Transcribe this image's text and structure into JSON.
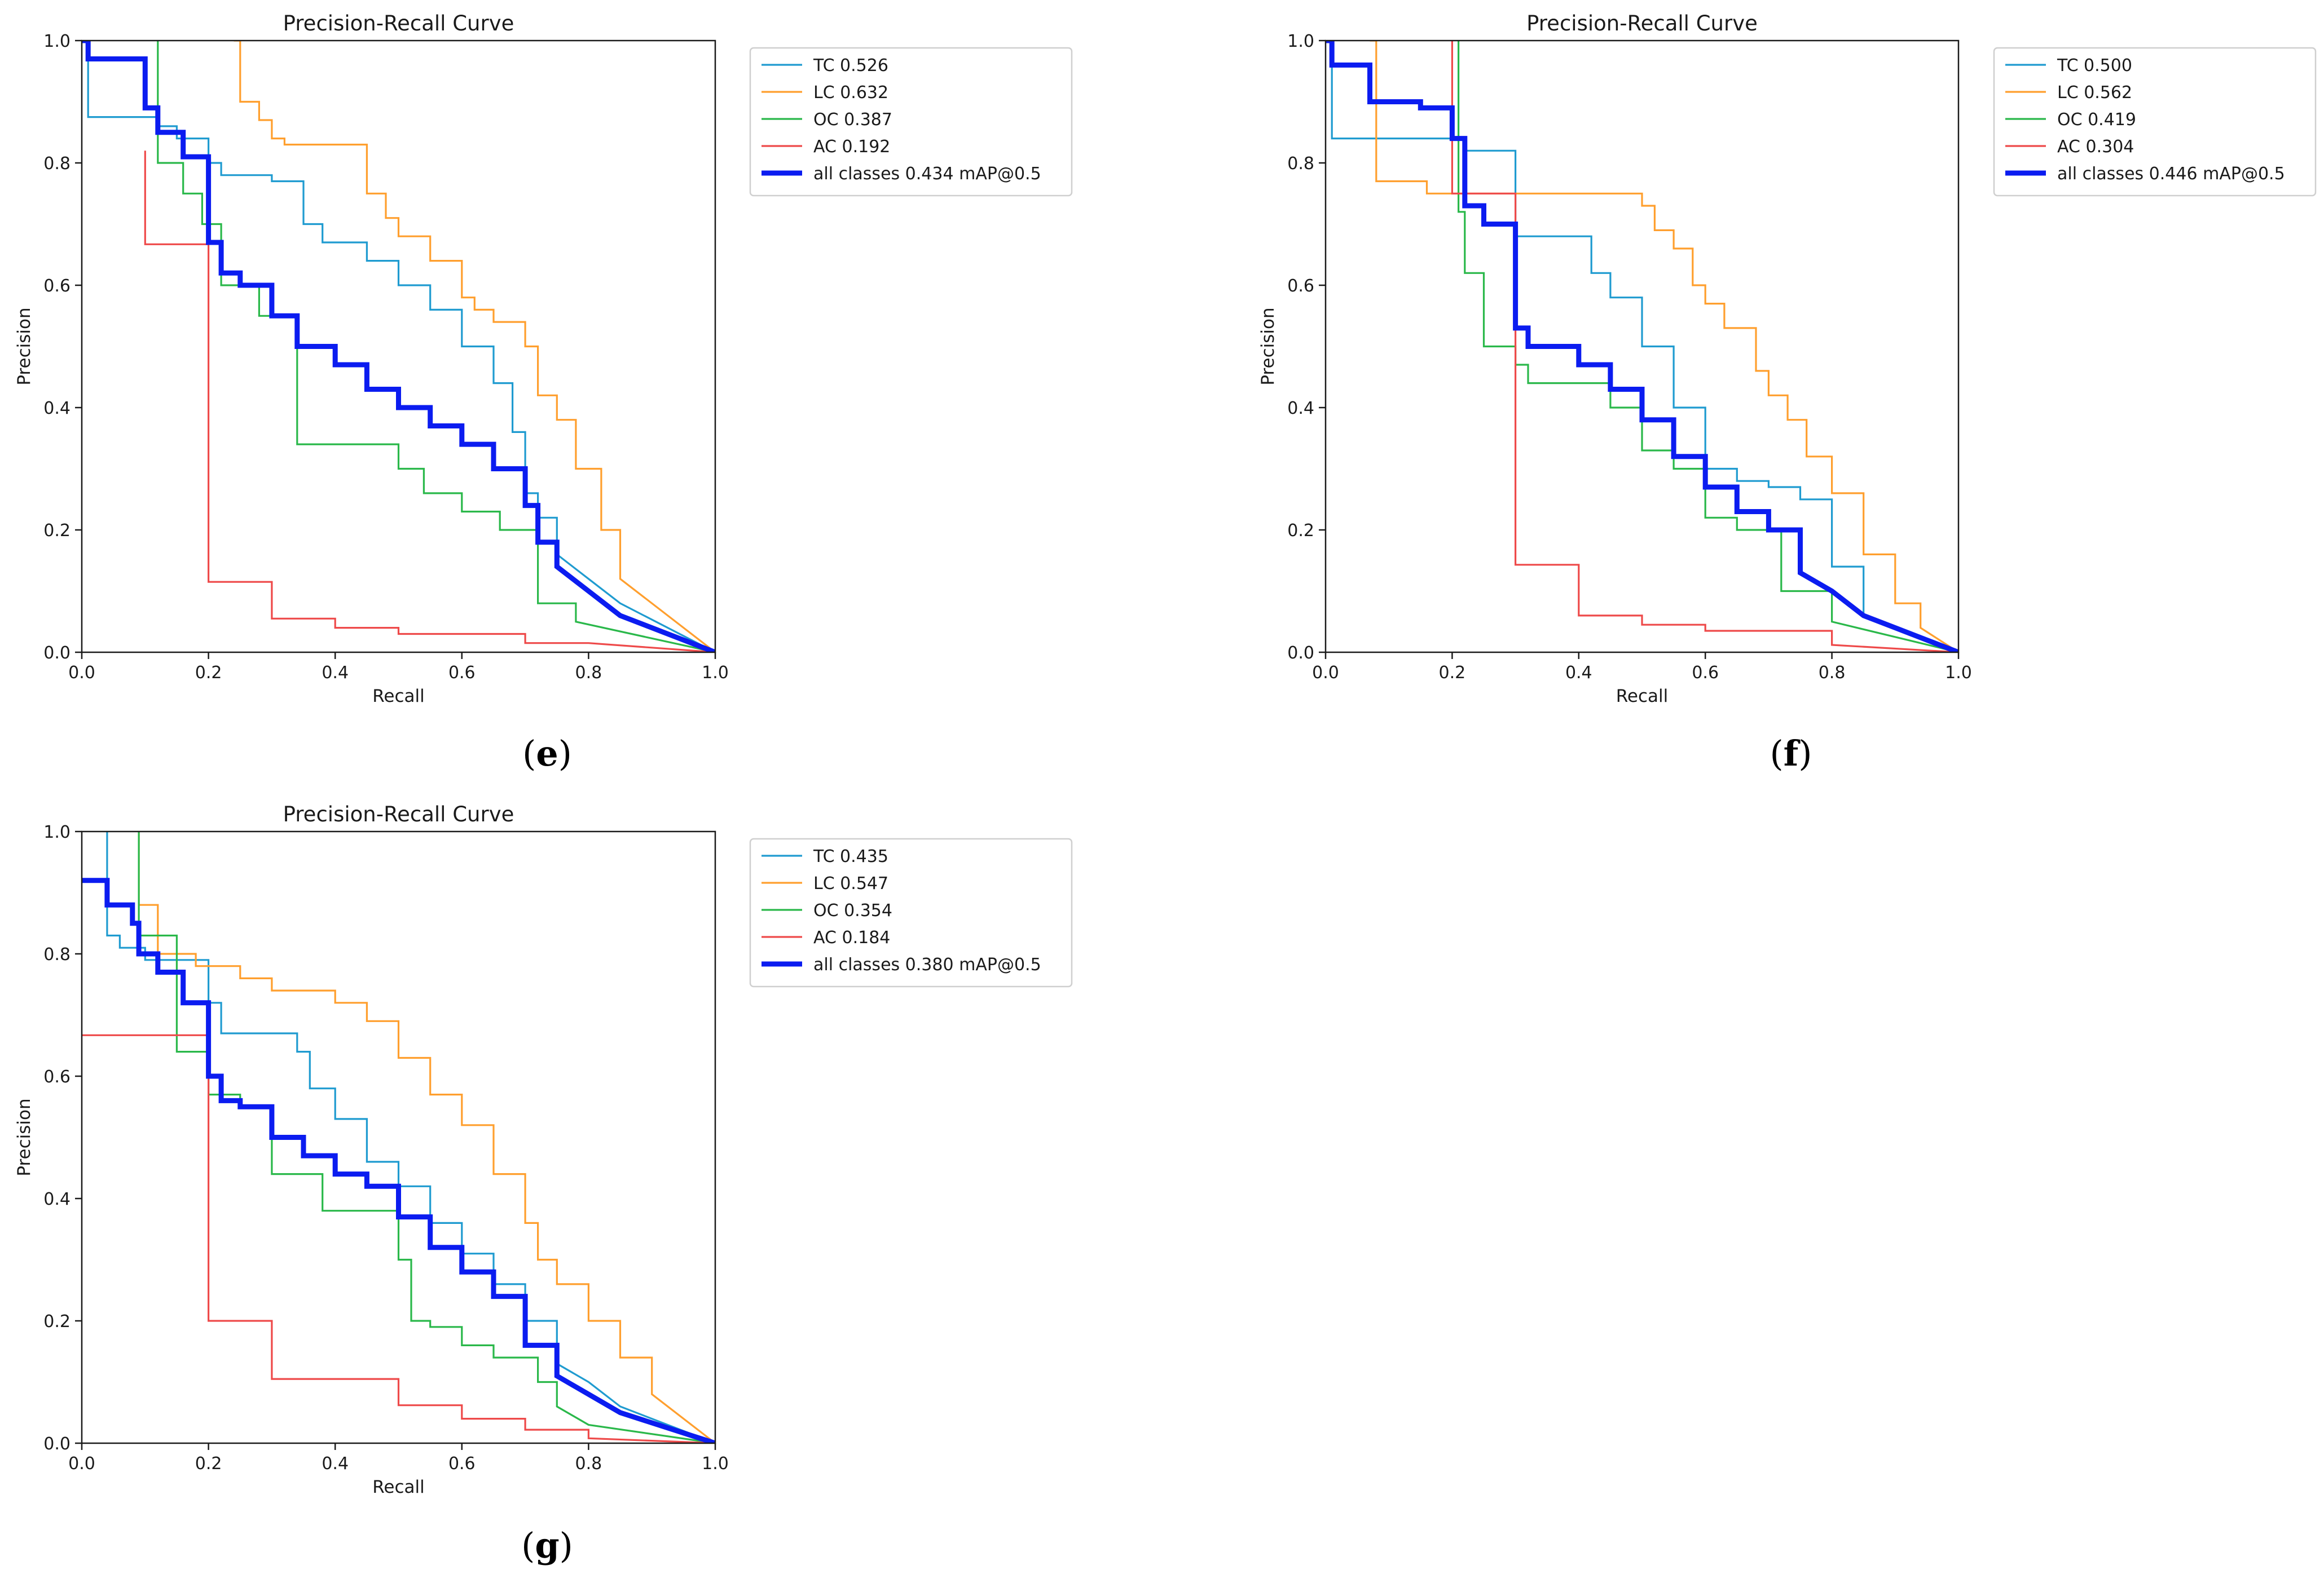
{
  "colors": {
    "TC": "#1f9bd0",
    "LC": "#ff9f2e",
    "OC": "#2ab84a",
    "AC": "#ee4a4a",
    "all": "#0b1cf0"
  },
  "captions": [
    {
      "open": "(",
      "letter": "e",
      "close": ")"
    },
    {
      "open": "(",
      "letter": "f",
      "close": ")"
    },
    {
      "open": "(",
      "letter": "g",
      "close": ")"
    }
  ],
  "chart_data": [
    {
      "type": "line",
      "title": "Precision-Recall Curve",
      "xlabel": "Recall",
      "ylabel": "Precision",
      "xlim": [
        0,
        1
      ],
      "ylim": [
        0,
        1
      ],
      "xticks": [
        "0.0",
        "0.2",
        "0.4",
        "0.6",
        "0.8",
        "1.0"
      ],
      "yticks": [
        "0.0",
        "0.2",
        "0.4",
        "0.6",
        "0.8",
        "1.0"
      ],
      "legend_position": "outside-right",
      "series": [
        {
          "key": "TC",
          "name": "TC 0.526",
          "x": [
            0,
            0.01,
            0.01,
            0.12,
            0.12,
            0.15,
            0.15,
            0.2,
            0.2,
            0.22,
            0.22,
            0.3,
            0.3,
            0.35,
            0.35,
            0.38,
            0.38,
            0.45,
            0.45,
            0.5,
            0.5,
            0.55,
            0.55,
            0.6,
            0.6,
            0.65,
            0.65,
            0.68,
            0.68,
            0.7,
            0.7,
            0.72,
            0.72,
            0.75,
            0.75,
            0.8,
            0.85,
            1
          ],
          "y": [
            1.0,
            1.0,
            0.875,
            0.875,
            0.86,
            0.86,
            0.84,
            0.84,
            0.8,
            0.8,
            0.78,
            0.78,
            0.77,
            0.77,
            0.7,
            0.7,
            0.67,
            0.67,
            0.64,
            0.64,
            0.6,
            0.6,
            0.56,
            0.56,
            0.5,
            0.5,
            0.44,
            0.44,
            0.36,
            0.36,
            0.26,
            0.26,
            0.22,
            0.22,
            0.16,
            0.12,
            0.08,
            0
          ]
        },
        {
          "key": "LC",
          "name": "LC 0.632",
          "x": [
            0.24,
            0.25,
            0.25,
            0.28,
            0.28,
            0.3,
            0.3,
            0.32,
            0.32,
            0.45,
            0.45,
            0.48,
            0.48,
            0.5,
            0.5,
            0.55,
            0.55,
            0.6,
            0.6,
            0.62,
            0.62,
            0.65,
            0.65,
            0.7,
            0.7,
            0.72,
            0.72,
            0.75,
            0.75,
            0.78,
            0.78,
            0.82,
            0.82,
            0.85,
            0.85,
            1
          ],
          "y": [
            1.0,
            1.0,
            0.9,
            0.9,
            0.87,
            0.87,
            0.84,
            0.84,
            0.83,
            0.83,
            0.75,
            0.75,
            0.71,
            0.71,
            0.68,
            0.68,
            0.64,
            0.64,
            0.58,
            0.58,
            0.56,
            0.56,
            0.54,
            0.54,
            0.5,
            0.5,
            0.42,
            0.42,
            0.38,
            0.38,
            0.3,
            0.3,
            0.2,
            0.2,
            0.12,
            0
          ]
        },
        {
          "key": "OC",
          "name": "OC 0.387",
          "x": [
            0.12,
            0.12,
            0.16,
            0.16,
            0.19,
            0.19,
            0.22,
            0.22,
            0.28,
            0.28,
            0.34,
            0.34,
            0.5,
            0.5,
            0.54,
            0.54,
            0.6,
            0.6,
            0.66,
            0.66,
            0.72,
            0.72,
            0.78,
            0.78,
            1
          ],
          "y": [
            1.0,
            0.8,
            0.8,
            0.75,
            0.75,
            0.7,
            0.7,
            0.6,
            0.6,
            0.55,
            0.55,
            0.34,
            0.34,
            0.3,
            0.3,
            0.26,
            0.26,
            0.23,
            0.23,
            0.2,
            0.2,
            0.08,
            0.08,
            0.05,
            0
          ]
        },
        {
          "key": "AC",
          "name": "AC 0.192",
          "x": [
            0.1,
            0.1,
            0.2,
            0.2,
            0.3,
            0.3,
            0.4,
            0.4,
            0.5,
            0.5,
            0.7,
            0.7,
            0.8,
            1
          ],
          "y": [
            0.82,
            0.667,
            0.667,
            0.115,
            0.115,
            0.055,
            0.055,
            0.04,
            0.04,
            0.03,
            0.03,
            0.015,
            0.015,
            0
          ]
        },
        {
          "key": "all",
          "name": "all classes 0.434 mAP@0.5",
          "thick": true,
          "x": [
            0,
            0.01,
            0.01,
            0.1,
            0.1,
            0.12,
            0.12,
            0.16,
            0.16,
            0.2,
            0.2,
            0.22,
            0.22,
            0.25,
            0.25,
            0.3,
            0.3,
            0.34,
            0.34,
            0.4,
            0.4,
            0.45,
            0.45,
            0.5,
            0.5,
            0.55,
            0.55,
            0.6,
            0.6,
            0.65,
            0.65,
            0.7,
            0.7,
            0.72,
            0.72,
            0.75,
            0.75,
            0.8,
            0.85,
            1
          ],
          "y": [
            1.0,
            1.0,
            0.97,
            0.97,
            0.89,
            0.89,
            0.85,
            0.85,
            0.81,
            0.81,
            0.67,
            0.67,
            0.62,
            0.62,
            0.6,
            0.6,
            0.55,
            0.55,
            0.5,
            0.5,
            0.47,
            0.47,
            0.43,
            0.43,
            0.4,
            0.4,
            0.37,
            0.37,
            0.34,
            0.34,
            0.3,
            0.3,
            0.24,
            0.24,
            0.18,
            0.18,
            0.14,
            0.1,
            0.06,
            0
          ]
        }
      ]
    },
    {
      "type": "line",
      "title": "Precision-Recall Curve",
      "xlabel": "Recall",
      "ylabel": "Precision",
      "xlim": [
        0,
        1
      ],
      "ylim": [
        0,
        1
      ],
      "xticks": [
        "0.0",
        "0.2",
        "0.4",
        "0.6",
        "0.8",
        "1.0"
      ],
      "yticks": [
        "0.0",
        "0.2",
        "0.4",
        "0.6",
        "0.8",
        "1.0"
      ],
      "legend_position": "outside-right",
      "series": [
        {
          "key": "TC",
          "name": "TC 0.500",
          "x": [
            0,
            0.01,
            0.01,
            0.22,
            0.22,
            0.3,
            0.3,
            0.42,
            0.42,
            0.45,
            0.45,
            0.5,
            0.5,
            0.55,
            0.55,
            0.6,
            0.6,
            0.65,
            0.65,
            0.7,
            0.7,
            0.75,
            0.75,
            0.8,
            0.8,
            0.85,
            0.85,
            1
          ],
          "y": [
            1.0,
            1.0,
            0.84,
            0.84,
            0.82,
            0.82,
            0.68,
            0.68,
            0.62,
            0.62,
            0.58,
            0.58,
            0.5,
            0.5,
            0.4,
            0.4,
            0.3,
            0.3,
            0.28,
            0.28,
            0.27,
            0.27,
            0.25,
            0.25,
            0.14,
            0.14,
            0.06,
            0
          ]
        },
        {
          "key": "LC",
          "name": "LC 0.562",
          "x": [
            0.07,
            0.08,
            0.08,
            0.16,
            0.16,
            0.5,
            0.5,
            0.52,
            0.52,
            0.55,
            0.55,
            0.58,
            0.58,
            0.6,
            0.6,
            0.63,
            0.63,
            0.68,
            0.68,
            0.7,
            0.7,
            0.73,
            0.73,
            0.76,
            0.76,
            0.8,
            0.8,
            0.85,
            0.85,
            0.9,
            0.9,
            0.94,
            0.94,
            1
          ],
          "y": [
            1.0,
            1.0,
            0.77,
            0.77,
            0.75,
            0.75,
            0.73,
            0.73,
            0.69,
            0.69,
            0.66,
            0.66,
            0.6,
            0.6,
            0.57,
            0.57,
            0.53,
            0.53,
            0.46,
            0.46,
            0.42,
            0.42,
            0.38,
            0.38,
            0.32,
            0.32,
            0.26,
            0.26,
            0.16,
            0.16,
            0.08,
            0.08,
            0.04,
            0
          ]
        },
        {
          "key": "OC",
          "name": "OC 0.419",
          "x": [
            0.21,
            0.21,
            0.22,
            0.22,
            0.25,
            0.25,
            0.3,
            0.3,
            0.32,
            0.32,
            0.45,
            0.45,
            0.5,
            0.5,
            0.55,
            0.55,
            0.6,
            0.6,
            0.65,
            0.65,
            0.72,
            0.72,
            0.8,
            0.8,
            1
          ],
          "y": [
            1.0,
            0.72,
            0.72,
            0.62,
            0.62,
            0.5,
            0.5,
            0.47,
            0.47,
            0.44,
            0.44,
            0.4,
            0.4,
            0.33,
            0.33,
            0.3,
            0.3,
            0.22,
            0.22,
            0.2,
            0.2,
            0.1,
            0.1,
            0.05,
            0
          ]
        },
        {
          "key": "AC",
          "name": "AC 0.304",
          "x": [
            0.2,
            0.2,
            0.3,
            0.3,
            0.4,
            0.4,
            0.5,
            0.5,
            0.6,
            0.6,
            0.8,
            0.8,
            1
          ],
          "y": [
            1.0,
            0.75,
            0.75,
            0.143,
            0.143,
            0.06,
            0.06,
            0.045,
            0.045,
            0.035,
            0.035,
            0.012,
            0
          ]
        },
        {
          "key": "all",
          "name": "all classes 0.446 mAP@0.5",
          "thick": true,
          "x": [
            0,
            0.01,
            0.01,
            0.07,
            0.07,
            0.15,
            0.15,
            0.2,
            0.2,
            0.22,
            0.22,
            0.25,
            0.25,
            0.3,
            0.3,
            0.32,
            0.32,
            0.4,
            0.4,
            0.45,
            0.45,
            0.5,
            0.5,
            0.55,
            0.55,
            0.6,
            0.6,
            0.65,
            0.65,
            0.7,
            0.7,
            0.75,
            0.75,
            0.8,
            0.85,
            0.9,
            0.95,
            1
          ],
          "y": [
            1.0,
            1.0,
            0.96,
            0.96,
            0.9,
            0.9,
            0.89,
            0.89,
            0.84,
            0.84,
            0.73,
            0.73,
            0.7,
            0.7,
            0.53,
            0.53,
            0.5,
            0.5,
            0.47,
            0.47,
            0.43,
            0.43,
            0.38,
            0.38,
            0.32,
            0.32,
            0.27,
            0.27,
            0.23,
            0.23,
            0.2,
            0.2,
            0.13,
            0.1,
            0.06,
            0.04,
            0.02,
            0
          ]
        }
      ]
    },
    {
      "type": "line",
      "title": "Precision-Recall Curve",
      "xlabel": "Recall",
      "ylabel": "Precision",
      "xlim": [
        0,
        1
      ],
      "ylim": [
        0,
        1
      ],
      "xticks": [
        "0.0",
        "0.2",
        "0.4",
        "0.6",
        "0.8",
        "1.0"
      ],
      "yticks": [
        "0.0",
        "0.2",
        "0.4",
        "0.6",
        "0.8",
        "1.0"
      ],
      "legend_position": "outside-right",
      "series": [
        {
          "key": "TC",
          "name": "TC 0.435",
          "x": [
            0.04,
            0.04,
            0.06,
            0.06,
            0.1,
            0.1,
            0.2,
            0.2,
            0.22,
            0.22,
            0.34,
            0.34,
            0.36,
            0.36,
            0.4,
            0.4,
            0.45,
            0.45,
            0.5,
            0.5,
            0.55,
            0.55,
            0.6,
            0.6,
            0.65,
            0.65,
            0.7,
            0.7,
            0.75,
            0.75,
            0.8,
            0.85,
            1
          ],
          "y": [
            1.0,
            0.83,
            0.83,
            0.81,
            0.81,
            0.79,
            0.79,
            0.72,
            0.72,
            0.67,
            0.67,
            0.64,
            0.64,
            0.58,
            0.58,
            0.53,
            0.53,
            0.46,
            0.46,
            0.42,
            0.42,
            0.36,
            0.36,
            0.31,
            0.31,
            0.26,
            0.26,
            0.2,
            0.2,
            0.13,
            0.1,
            0.06,
            0
          ]
        },
        {
          "key": "LC",
          "name": "LC 0.547",
          "x": [
            0.09,
            0.09,
            0.12,
            0.12,
            0.18,
            0.18,
            0.25,
            0.25,
            0.3,
            0.3,
            0.4,
            0.4,
            0.45,
            0.45,
            0.5,
            0.5,
            0.55,
            0.55,
            0.6,
            0.6,
            0.65,
            0.65,
            0.7,
            0.7,
            0.72,
            0.72,
            0.75,
            0.75,
            0.8,
            0.8,
            0.85,
            0.85,
            0.9,
            0.9,
            1
          ],
          "y": [
            1.0,
            0.88,
            0.88,
            0.8,
            0.8,
            0.78,
            0.78,
            0.76,
            0.76,
            0.74,
            0.74,
            0.72,
            0.72,
            0.69,
            0.69,
            0.63,
            0.63,
            0.57,
            0.57,
            0.52,
            0.52,
            0.44,
            0.44,
            0.36,
            0.36,
            0.3,
            0.3,
            0.26,
            0.26,
            0.2,
            0.2,
            0.14,
            0.14,
            0.08,
            0
          ]
        },
        {
          "key": "OC",
          "name": "OC 0.354",
          "x": [
            0.09,
            0.09,
            0.15,
            0.15,
            0.2,
            0.2,
            0.25,
            0.25,
            0.3,
            0.3,
            0.38,
            0.38,
            0.5,
            0.5,
            0.52,
            0.52,
            0.55,
            0.55,
            0.6,
            0.6,
            0.65,
            0.65,
            0.72,
            0.72,
            0.75,
            0.75,
            0.8,
            1
          ],
          "y": [
            1.0,
            0.83,
            0.83,
            0.64,
            0.64,
            0.57,
            0.57,
            0.55,
            0.55,
            0.44,
            0.44,
            0.38,
            0.38,
            0.3,
            0.3,
            0.2,
            0.2,
            0.19,
            0.19,
            0.16,
            0.16,
            0.14,
            0.14,
            0.1,
            0.1,
            0.06,
            0.03,
            0
          ]
        },
        {
          "key": "AC",
          "name": "AC 0.184",
          "x": [
            0,
            0.2,
            0.2,
            0.3,
            0.3,
            0.5,
            0.5,
            0.6,
            0.6,
            0.7,
            0.7,
            0.8,
            0.8,
            1
          ],
          "y": [
            0.667,
            0.667,
            0.2,
            0.2,
            0.105,
            0.105,
            0.062,
            0.062,
            0.04,
            0.04,
            0.022,
            0.022,
            0.008,
            0
          ]
        },
        {
          "key": "all",
          "name": "all classes 0.380 mAP@0.5",
          "thick": true,
          "x": [
            0,
            0.04,
            0.04,
            0.08,
            0.08,
            0.09,
            0.09,
            0.12,
            0.12,
            0.16,
            0.16,
            0.2,
            0.2,
            0.22,
            0.22,
            0.25,
            0.25,
            0.3,
            0.3,
            0.35,
            0.35,
            0.4,
            0.4,
            0.45,
            0.45,
            0.5,
            0.5,
            0.55,
            0.55,
            0.6,
            0.6,
            0.65,
            0.65,
            0.7,
            0.7,
            0.75,
            0.75,
            0.8,
            0.85,
            1
          ],
          "y": [
            0.92,
            0.92,
            0.88,
            0.88,
            0.85,
            0.85,
            0.8,
            0.8,
            0.77,
            0.77,
            0.72,
            0.72,
            0.6,
            0.6,
            0.56,
            0.56,
            0.55,
            0.55,
            0.5,
            0.5,
            0.47,
            0.47,
            0.44,
            0.44,
            0.42,
            0.42,
            0.37,
            0.37,
            0.32,
            0.32,
            0.28,
            0.28,
            0.24,
            0.24,
            0.16,
            0.16,
            0.11,
            0.08,
            0.05,
            0
          ]
        }
      ]
    }
  ]
}
